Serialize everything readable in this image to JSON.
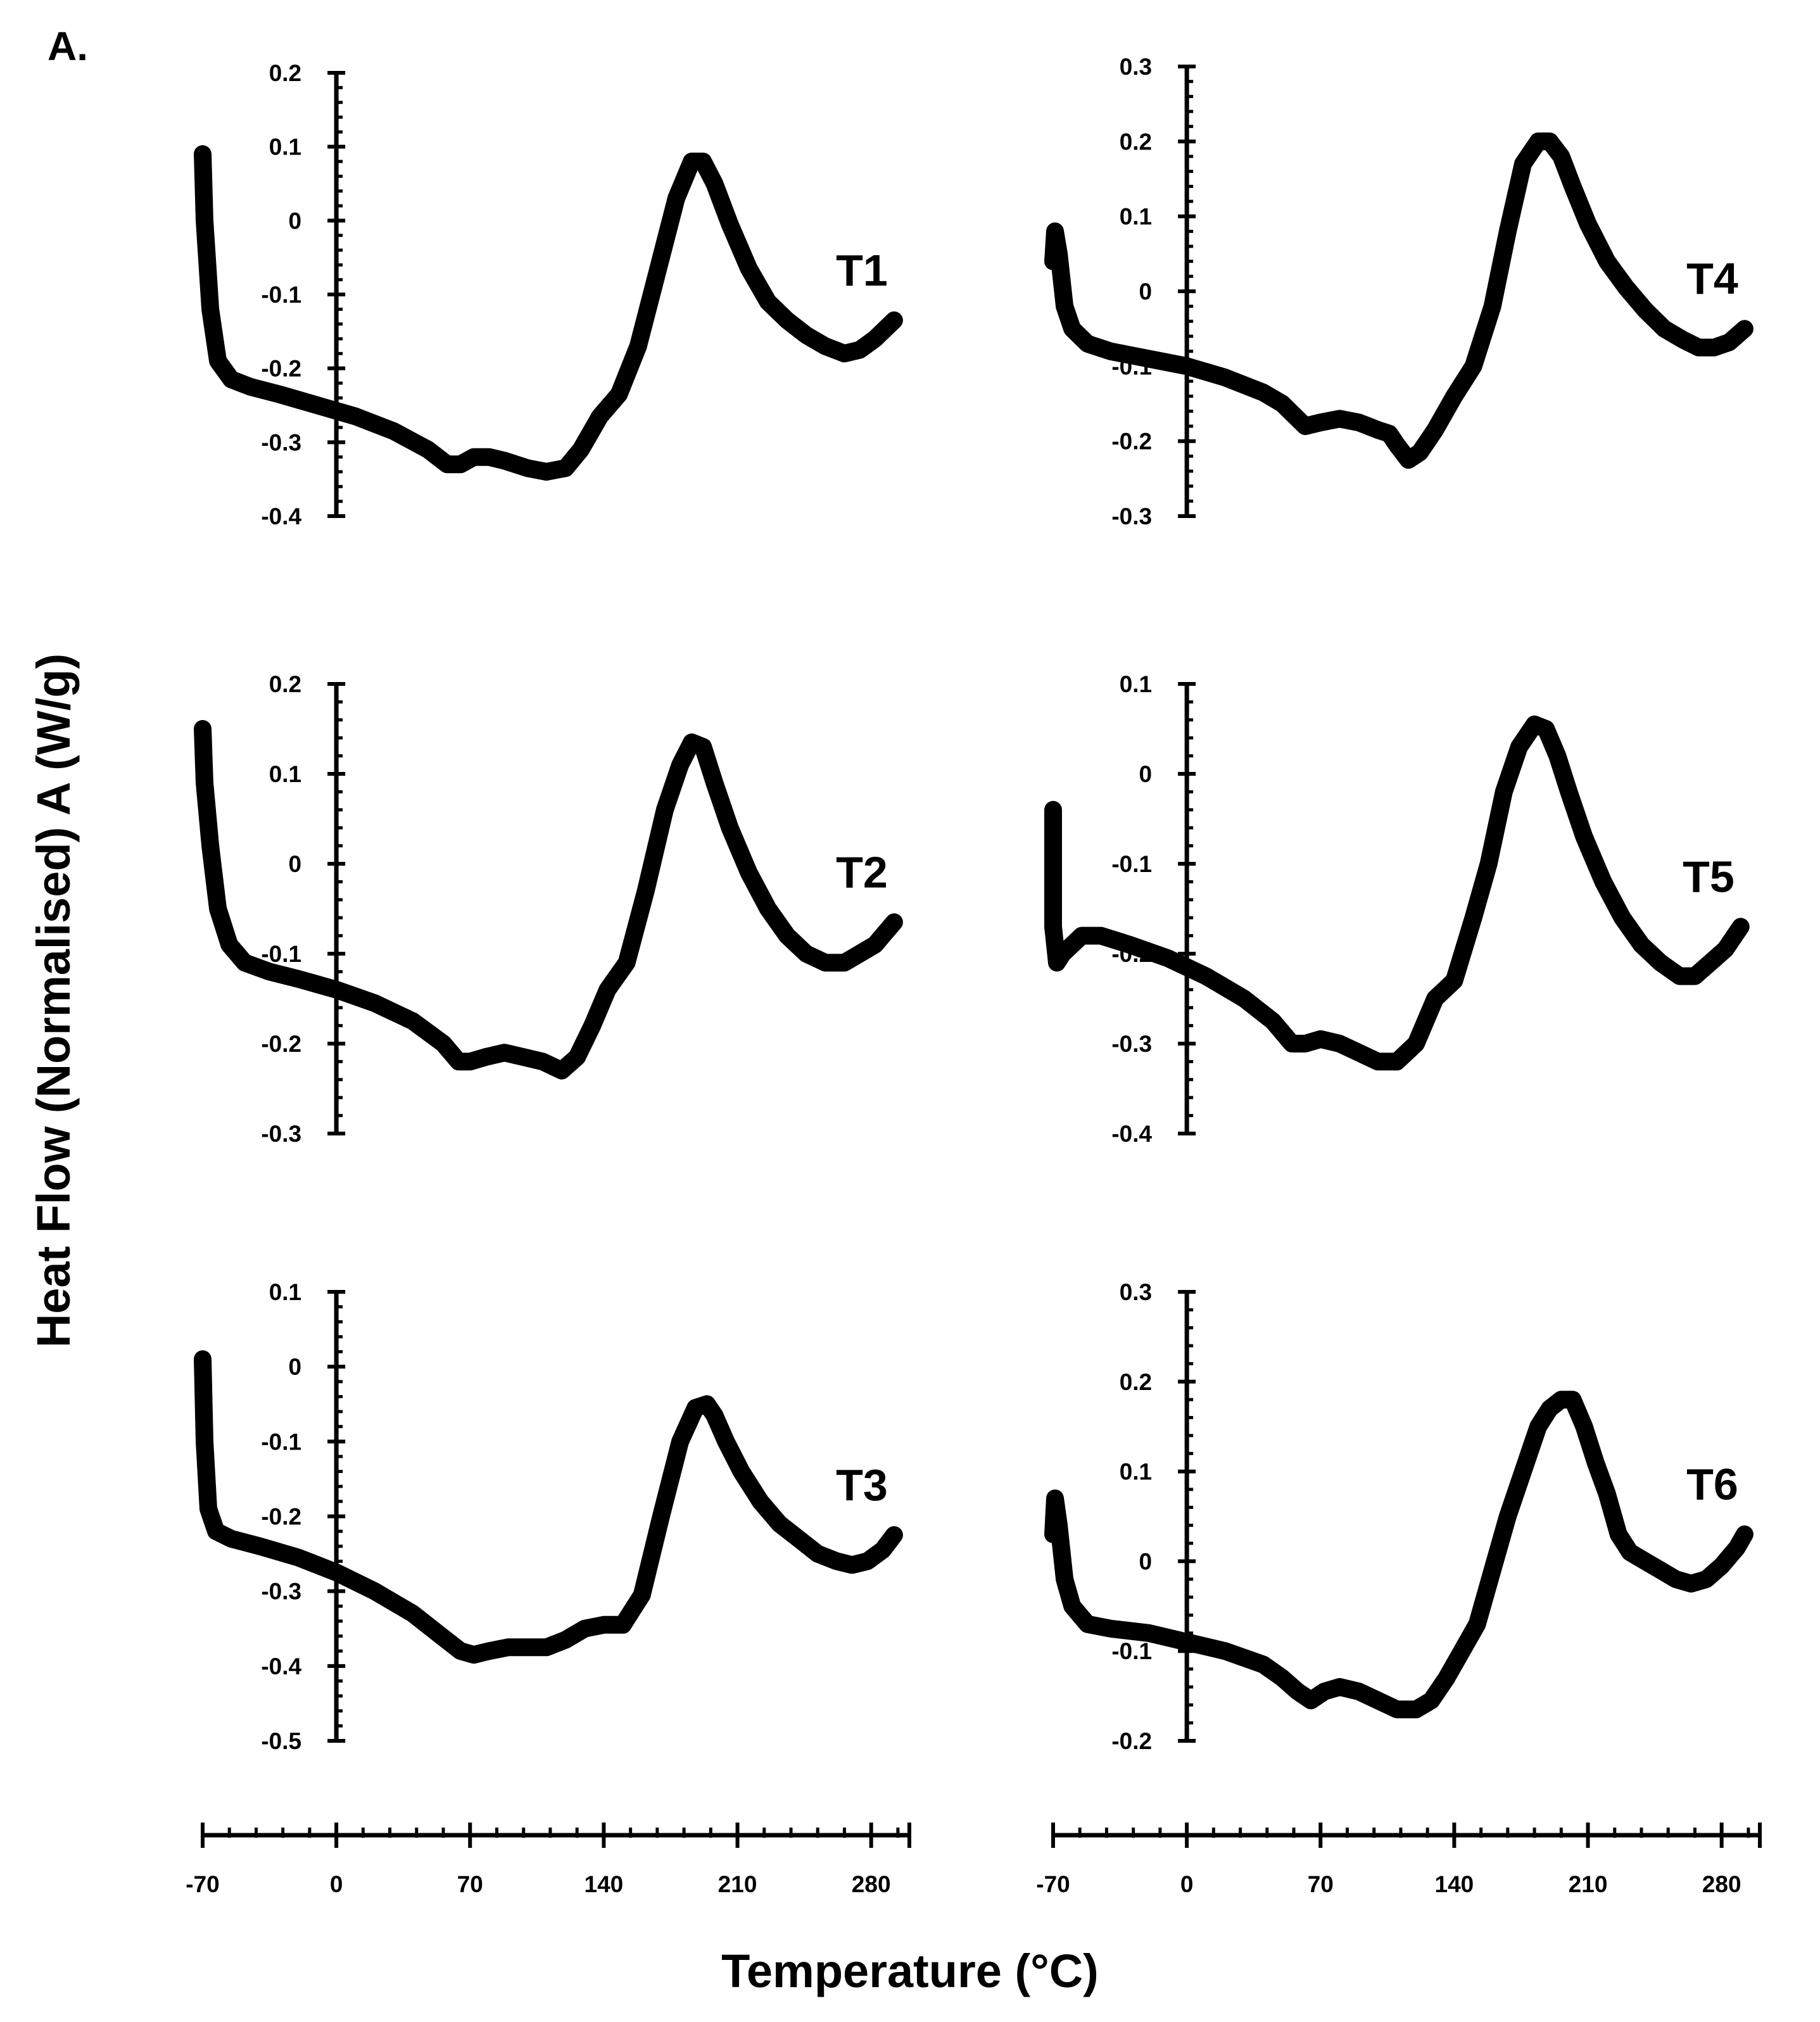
{
  "figure": {
    "panel_label": "A.",
    "ylabel": "Heat Flow (Normalised) A (W/g)",
    "xlabel": "Temperature (°C)"
  },
  "chart_data": {
    "type": "line",
    "xlabel": "Temperature (°C)",
    "ylabel": "Heat Flow (Normalised) A (W/g)",
    "shared_x": {
      "range": [
        -70,
        300
      ],
      "ticks": [
        -70,
        0,
        70,
        140,
        210,
        280
      ],
      "tick_labels": [
        "-70",
        "0",
        "70",
        "140",
        "210",
        "280"
      ]
    },
    "panels": [
      {
        "name": "T1",
        "ylim": [
          -0.4,
          0.2
        ],
        "yticks": [
          -0.4,
          -0.3,
          -0.2,
          -0.1,
          0,
          0.1,
          0.2
        ],
        "ytick_labels": [
          "-0.4",
          "-0.3",
          "-0.2",
          "-0.1",
          "0",
          "0.1",
          "0.2"
        ],
        "x": [
          -70,
          -69,
          -66,
          -62,
          -55,
          -45,
          -30,
          -10,
          10,
          30,
          48,
          58,
          65,
          72,
          80,
          88,
          100,
          110,
          120,
          128,
          138,
          148,
          158,
          168,
          178,
          186,
          192,
          198,
          206,
          216,
          226,
          236,
          246,
          256,
          266,
          274,
          282,
          292
        ],
        "y": [
          0.09,
          0.0,
          -0.12,
          -0.19,
          -0.215,
          -0.225,
          -0.235,
          -0.25,
          -0.265,
          -0.285,
          -0.31,
          -0.33,
          -0.33,
          -0.32,
          -0.32,
          -0.325,
          -0.335,
          -0.34,
          -0.335,
          -0.31,
          -0.265,
          -0.235,
          -0.17,
          -0.07,
          0.03,
          0.08,
          0.08,
          0.05,
          -0.005,
          -0.065,
          -0.11,
          -0.135,
          -0.155,
          -0.17,
          -0.18,
          -0.175,
          -0.16,
          -0.135
        ]
      },
      {
        "name": "T2",
        "ylim": [
          -0.3,
          0.2
        ],
        "yticks": [
          -0.3,
          -0.2,
          -0.1,
          0,
          0.1,
          0.2
        ],
        "ytick_labels": [
          "-0.3",
          "-0.2",
          "-0.1",
          "0",
          "0.1",
          "0.2"
        ],
        "x": [
          -70,
          -69,
          -66,
          -62,
          -56,
          -48,
          -35,
          -20,
          0,
          20,
          40,
          56,
          64,
          70,
          78,
          88,
          98,
          108,
          118,
          126,
          134,
          142,
          152,
          162,
          172,
          180,
          186,
          192,
          198,
          206,
          216,
          226,
          236,
          246,
          256,
          266,
          274,
          282,
          292
        ],
        "y": [
          0.15,
          0.09,
          0.02,
          -0.05,
          -0.09,
          -0.11,
          -0.12,
          -0.128,
          -0.14,
          -0.155,
          -0.175,
          -0.2,
          -0.22,
          -0.22,
          -0.215,
          -0.21,
          -0.215,
          -0.22,
          -0.23,
          -0.215,
          -0.18,
          -0.14,
          -0.11,
          -0.03,
          0.06,
          0.11,
          0.135,
          0.13,
          0.09,
          0.04,
          -0.01,
          -0.05,
          -0.08,
          -0.1,
          -0.11,
          -0.11,
          -0.1,
          -0.09,
          -0.065
        ]
      },
      {
        "name": "T3",
        "ylim": [
          -0.5,
          0.1
        ],
        "yticks": [
          -0.5,
          -0.4,
          -0.3,
          -0.2,
          -0.1,
          0,
          0.1
        ],
        "ytick_labels": [
          "-0.5",
          "-0.4",
          "-0.3",
          "-0.2",
          "-0.1",
          "0",
          "0.1"
        ],
        "x": [
          -70,
          -69,
          -67,
          -63,
          -55,
          -40,
          -20,
          0,
          20,
          40,
          55,
          65,
          72,
          80,
          90,
          100,
          110,
          120,
          130,
          140,
          150,
          160,
          170,
          180,
          188,
          194,
          198,
          204,
          212,
          222,
          232,
          242,
          252,
          262,
          270,
          278,
          286,
          292
        ],
        "y": [
          0.01,
          -0.1,
          -0.19,
          -0.22,
          -0.23,
          -0.24,
          -0.255,
          -0.275,
          -0.3,
          -0.33,
          -0.36,
          -0.38,
          -0.385,
          -0.38,
          -0.375,
          -0.375,
          -0.375,
          -0.365,
          -0.35,
          -0.345,
          -0.345,
          -0.305,
          -0.2,
          -0.1,
          -0.055,
          -0.05,
          -0.065,
          -0.1,
          -0.14,
          -0.18,
          -0.21,
          -0.23,
          -0.25,
          -0.26,
          -0.265,
          -0.26,
          -0.245,
          -0.225
        ]
      },
      {
        "name": "T4",
        "ylim": [
          -0.3,
          0.3
        ],
        "yticks": [
          -0.3,
          -0.2,
          -0.1,
          0,
          0.1,
          0.2,
          0.3
        ],
        "ytick_labels": [
          "-0.3",
          "-0.2",
          "-0.1",
          "0",
          "0.1",
          "0.2",
          "0.3"
        ],
        "x": [
          -70,
          -69,
          -67,
          -64,
          -60,
          -52,
          -40,
          -20,
          0,
          20,
          40,
          50,
          56,
          62,
          70,
          80,
          90,
          100,
          106,
          110,
          116,
          122,
          130,
          140,
          150,
          160,
          168,
          176,
          184,
          190,
          196,
          202,
          210,
          220,
          230,
          240,
          250,
          260,
          268,
          276,
          284,
          292
        ],
        "y": [
          0.04,
          0.08,
          0.05,
          -0.02,
          -0.05,
          -0.07,
          -0.08,
          -0.09,
          -0.1,
          -0.115,
          -0.135,
          -0.15,
          -0.165,
          -0.18,
          -0.175,
          -0.17,
          -0.175,
          -0.185,
          -0.19,
          -0.205,
          -0.225,
          -0.215,
          -0.185,
          -0.14,
          -0.1,
          -0.02,
          0.08,
          0.17,
          0.2,
          0.2,
          0.18,
          0.14,
          0.09,
          0.04,
          0.005,
          -0.025,
          -0.05,
          -0.065,
          -0.075,
          -0.075,
          -0.068,
          -0.05
        ]
      },
      {
        "name": "T5",
        "ylim": [
          -0.4,
          0.1
        ],
        "yticks": [
          -0.4,
          -0.3,
          -0.2,
          -0.1,
          0,
          0.1
        ],
        "ytick_labels": [
          "-0.4",
          "-0.3",
          "-0.2",
          "-0.1",
          "0",
          "0.1"
        ],
        "x": [
          -70,
          -70,
          -68,
          -65,
          -60,
          -55,
          -45,
          -30,
          -10,
          10,
          30,
          45,
          55,
          62,
          70,
          80,
          90,
          100,
          110,
          120,
          130,
          140,
          150,
          158,
          166,
          174,
          182,
          188,
          194,
          200,
          208,
          218,
          228,
          238,
          248,
          258,
          266,
          274,
          282,
          290
        ],
        "y": [
          -0.04,
          -0.17,
          -0.21,
          -0.2,
          -0.19,
          -0.18,
          -0.18,
          -0.19,
          -0.205,
          -0.225,
          -0.25,
          -0.275,
          -0.3,
          -0.3,
          -0.295,
          -0.3,
          -0.31,
          -0.32,
          -0.32,
          -0.3,
          -0.25,
          -0.23,
          -0.16,
          -0.1,
          -0.02,
          0.03,
          0.055,
          0.05,
          0.02,
          -0.02,
          -0.07,
          -0.12,
          -0.16,
          -0.19,
          -0.21,
          -0.225,
          -0.225,
          -0.21,
          -0.195,
          -0.17
        ]
      },
      {
        "name": "T6",
        "ylim": [
          -0.2,
          0.3
        ],
        "yticks": [
          -0.2,
          -0.1,
          0,
          0.1,
          0.2,
          0.3
        ],
        "ytick_labels": [
          "-0.2",
          "-0.1",
          "0",
          "0.1",
          "0.2",
          "0.3"
        ],
        "x": [
          -70,
          -69,
          -67,
          -64,
          -60,
          -52,
          -40,
          -20,
          0,
          20,
          40,
          50,
          58,
          65,
          72,
          80,
          90,
          100,
          110,
          120,
          128,
          136,
          144,
          152,
          160,
          168,
          176,
          184,
          190,
          196,
          202,
          208,
          214,
          220,
          226,
          232,
          240,
          248,
          256,
          264,
          272,
          280,
          288,
          292
        ],
        "y": [
          0.03,
          0.07,
          0.04,
          -0.02,
          -0.05,
          -0.07,
          -0.075,
          -0.08,
          -0.09,
          -0.1,
          -0.115,
          -0.13,
          -0.145,
          -0.155,
          -0.145,
          -0.14,
          -0.145,
          -0.155,
          -0.165,
          -0.165,
          -0.155,
          -0.13,
          -0.1,
          -0.07,
          -0.01,
          0.05,
          0.1,
          0.15,
          0.17,
          0.18,
          0.18,
          0.15,
          0.11,
          0.075,
          0.03,
          0.01,
          0.0,
          -0.01,
          -0.02,
          -0.025,
          -0.02,
          -0.005,
          0.015,
          0.03
        ]
      }
    ]
  }
}
